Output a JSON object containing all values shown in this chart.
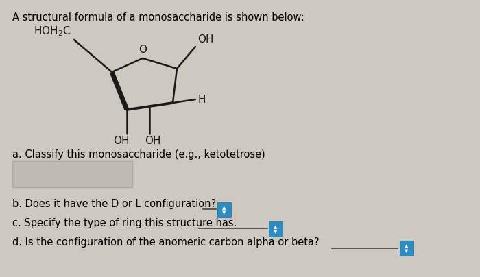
{
  "title": "A structural formula of a monosaccharide is shown below:",
  "background_color": "#cdc8c0",
  "text_color": "#000000",
  "title_fontsize": 10.5,
  "label_fontsize": 10.5,
  "molecule": {
    "ring_color": "#1a1a1a",
    "ring_linewidth": 1.8,
    "bold_linewidth": 5.0,
    "label_fontsize": 11
  },
  "questions": [
    "a. Classify this monosaccharide (e.g., ketotetrose)",
    "b. Does it have the D or L configuration?",
    "c. Specify the type of ring this structure has.",
    "d. Is the configuration of the anomeric carbon alpha or beta?"
  ]
}
